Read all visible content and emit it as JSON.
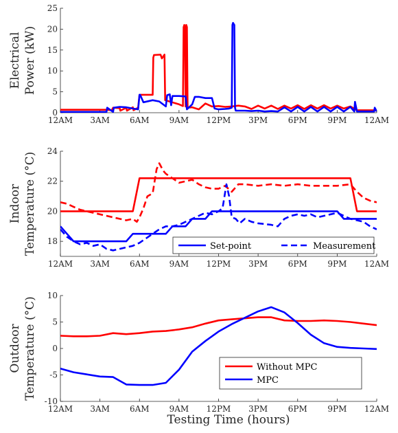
{
  "colors": {
    "without_mpc": "#ff0000",
    "mpc": "#0000ff"
  },
  "x_axis": {
    "label": "Testing Time (hours)",
    "ticks": [
      0,
      3,
      6,
      9,
      12,
      15,
      18,
      21,
      24
    ],
    "tick_labels": [
      "12AM",
      "3AM",
      "6AM",
      "9AM",
      "12PM",
      "3PM",
      "6PM",
      "9PM",
      "12AM"
    ]
  },
  "chart_data": [
    {
      "type": "line",
      "ylabel_lines": [
        "Electrical",
        "Power (kW)"
      ],
      "xlim": [
        0,
        24
      ],
      "ylim": [
        0,
        25
      ],
      "yticks": [
        0,
        5,
        10,
        15,
        20,
        25
      ],
      "series": [
        {
          "name": "Without MPC",
          "color": "#ff0000",
          "dash": "solid",
          "x": [
            0,
            3.5,
            3.9,
            4.0,
            4.5,
            4.55,
            5.0,
            5.05,
            5.5,
            5.55,
            5.9,
            5.95,
            6.0,
            6.05,
            7.0,
            7.05,
            7.1,
            7.6,
            7.7,
            7.9,
            7.95,
            9.0,
            9.3,
            9.35,
            9.4,
            9.45,
            9.5,
            9.55,
            9.6,
            9.65,
            10.0,
            10.5,
            11.0,
            11.5,
            12.0,
            12.5,
            13.0,
            13.5,
            14.0,
            14.5,
            15.0,
            15.5,
            16.0,
            16.5,
            17.0,
            17.5,
            18.0,
            18.5,
            19.0,
            19.5,
            20.0,
            20.5,
            21.0,
            21.5,
            22.0,
            22.5,
            23.0,
            24.0
          ],
          "y": [
            0.7,
            0.7,
            0.6,
            1.2,
            1.1,
            0.5,
            1.2,
            0.5,
            1.3,
            0.6,
            1.2,
            2.8,
            4.3,
            4.3,
            4.3,
            13.2,
            13.8,
            13.9,
            13.0,
            13.9,
            3.0,
            2.0,
            1.6,
            20.5,
            21.0,
            20.0,
            1.5,
            21.0,
            20.5,
            1.2,
            1.3,
            0.8,
            2.2,
            1.5,
            1.6,
            1.4,
            1.5,
            1.7,
            1.5,
            0.9,
            1.7,
            1.0,
            1.7,
            0.9,
            1.7,
            1.0,
            1.8,
            0.9,
            1.8,
            1.0,
            1.8,
            1.0,
            1.7,
            1.0,
            1.5,
            0.6,
            0.6,
            0.6
          ]
        },
        {
          "name": "MPC",
          "color": "#0000ff",
          "dash": "solid",
          "x": [
            0,
            3.0,
            3.5,
            3.55,
            4.0,
            4.05,
            4.5,
            5.0,
            5.5,
            5.9,
            6.0,
            6.05,
            6.3,
            7.0,
            7.5,
            8.0,
            8.1,
            8.3,
            8.4,
            8.5,
            9.0,
            9.5,
            9.6,
            10.0,
            10.2,
            10.5,
            11.0,
            11.5,
            11.7,
            12.0,
            12.5,
            12.8,
            13.0,
            13.05,
            13.1,
            13.2,
            13.25,
            13.3,
            14.0,
            14.5,
            15.0,
            15.5,
            16.0,
            16.5,
            17.0,
            17.5,
            18.0,
            18.5,
            19.0,
            19.5,
            20.0,
            20.5,
            21.0,
            21.5,
            22.0,
            22.3,
            22.35,
            22.5,
            23.0,
            23.8,
            23.85,
            24.0
          ],
          "y": [
            0.2,
            0.2,
            0.2,
            1.2,
            0.2,
            1.2,
            1.4,
            1.3,
            1.0,
            0.8,
            4.3,
            4.3,
            2.5,
            3.0,
            2.7,
            1.5,
            4.2,
            4.4,
            1.8,
            4.0,
            4.0,
            3.9,
            0.8,
            2.0,
            3.8,
            3.8,
            3.5,
            3.5,
            1.0,
            0.8,
            0.9,
            1.0,
            1.2,
            21.0,
            21.5,
            21.0,
            1.2,
            0.5,
            0.5,
            0.4,
            0.5,
            0.3,
            0.4,
            0.3,
            1.3,
            0.3,
            1.4,
            0.3,
            1.4,
            0.3,
            1.4,
            0.3,
            1.4,
            0.3,
            1.4,
            0.3,
            2.6,
            0.3,
            0.3,
            0.3,
            1.2,
            0.3
          ]
        }
      ]
    },
    {
      "type": "line",
      "ylabel_lines": [
        "Indoor",
        "Temperature (°C)"
      ],
      "xlim": [
        0,
        24
      ],
      "ylim": [
        17,
        24
      ],
      "yticks": [
        18,
        20,
        22,
        24
      ],
      "legend": {
        "placement": "bottom-right",
        "entries": [
          {
            "label": "Set-point",
            "dash": "solid"
          },
          {
            "label": "Measurement",
            "dash": "dashed"
          }
        ]
      },
      "series": [
        {
          "name": "Set-point",
          "color": "#ff0000",
          "dash": "solid",
          "x": [
            0,
            5.5,
            6.0,
            22.0,
            22.5,
            24.0
          ],
          "y": [
            20.0,
            20.0,
            22.2,
            22.2,
            20.0,
            20.0
          ]
        },
        {
          "name": "Measurement",
          "color": "#ff0000",
          "dash": "dashed",
          "x": [
            0,
            0.5,
            1.0,
            1.5,
            2.0,
            2.5,
            3.0,
            3.5,
            4.0,
            4.5,
            5.0,
            5.5,
            5.8,
            6.0,
            6.3,
            6.6,
            7.0,
            7.3,
            7.5,
            7.8,
            8.0,
            8.5,
            9.0,
            9.5,
            10.0,
            10.5,
            11.0,
            11.5,
            12.0,
            12.5,
            13.0,
            13.5,
            14.0,
            15.0,
            16.0,
            17.0,
            18.0,
            19.0,
            20.0,
            21.0,
            22.0,
            22.5,
            23.0,
            23.5,
            24.0
          ],
          "y": [
            20.6,
            20.5,
            20.3,
            20.1,
            20.0,
            19.9,
            19.8,
            19.7,
            19.6,
            19.5,
            19.4,
            19.5,
            19.3,
            19.6,
            20.2,
            21.0,
            21.2,
            22.8,
            23.2,
            22.7,
            22.5,
            22.2,
            21.9,
            22.0,
            22.1,
            21.8,
            21.6,
            21.5,
            21.5,
            21.7,
            21.3,
            21.8,
            21.8,
            21.7,
            21.8,
            21.7,
            21.8,
            21.7,
            21.7,
            21.7,
            21.8,
            21.3,
            20.9,
            20.7,
            20.6
          ]
        },
        {
          "name": "Set-point",
          "color": "#0000ff",
          "dash": "solid",
          "x": [
            0,
            0.5,
            1.0,
            5.0,
            5.5,
            6.5,
            7.0,
            8.0,
            8.5,
            9.5,
            10.0,
            11.0,
            11.5,
            21.0,
            21.5,
            24.0
          ],
          "y": [
            19.0,
            18.5,
            18.0,
            18.0,
            18.5,
            18.5,
            18.5,
            18.5,
            19.0,
            19.0,
            19.5,
            19.5,
            20.0,
            20.0,
            19.5,
            19.5
          ]
        },
        {
          "name": "Measurement",
          "color": "#0000ff",
          "dash": "dashed",
          "x": [
            0,
            0.5,
            1.0,
            1.5,
            2.0,
            2.5,
            3.0,
            3.5,
            4.0,
            4.5,
            5.0,
            5.5,
            6.0,
            6.5,
            7.0,
            7.5,
            8.0,
            8.5,
            9.0,
            9.5,
            10.0,
            10.5,
            11.0,
            11.5,
            12.0,
            12.3,
            12.6,
            12.8,
            13.0,
            13.3,
            13.6,
            14.0,
            14.5,
            15.0,
            16.0,
            16.5,
            17.0,
            17.5,
            18.0,
            18.5,
            19.0,
            19.5,
            20.0,
            20.5,
            21.0,
            21.5,
            22.0,
            22.5,
            23.0,
            23.5,
            24.0
          ],
          "y": [
            18.8,
            18.3,
            18.0,
            17.8,
            17.9,
            17.7,
            17.8,
            17.5,
            17.4,
            17.5,
            17.6,
            17.7,
            17.9,
            18.2,
            18.5,
            18.8,
            19.0,
            19.0,
            19.1,
            19.3,
            19.5,
            19.7,
            19.9,
            19.8,
            20.0,
            20.2,
            21.8,
            21.0,
            19.6,
            19.5,
            19.2,
            19.5,
            19.3,
            19.2,
            19.1,
            19.0,
            19.5,
            19.7,
            19.8,
            19.7,
            19.8,
            19.6,
            19.7,
            19.8,
            19.9,
            19.7,
            19.5,
            19.4,
            19.3,
            19.0,
            18.8
          ]
        }
      ]
    },
    {
      "type": "line",
      "ylabel_lines": [
        "Outdoor",
        "Temperature (°C)"
      ],
      "xlim": [
        0,
        24
      ],
      "ylim": [
        -10,
        10
      ],
      "yticks": [
        -10,
        -5,
        0,
        5,
        10
      ],
      "legend": {
        "placement": "bottom-right",
        "entries": [
          {
            "label": "Without MPC",
            "color": "#ff0000"
          },
          {
            "label": "MPC",
            "color": "#0000ff"
          }
        ]
      },
      "series": [
        {
          "name": "Without MPC",
          "color": "#ff0000",
          "dash": "solid",
          "x": [
            0,
            1,
            2,
            3,
            4,
            5,
            6,
            7,
            8,
            9,
            10,
            11,
            12,
            13,
            14,
            15,
            16,
            17,
            18,
            19,
            20,
            21,
            22,
            23,
            24
          ],
          "y": [
            2.4,
            2.3,
            2.3,
            2.4,
            2.9,
            2.7,
            2.9,
            3.2,
            3.3,
            3.6,
            4.0,
            4.7,
            5.3,
            5.5,
            5.7,
            5.9,
            5.9,
            5.3,
            5.2,
            5.2,
            5.3,
            5.2,
            5.0,
            4.7,
            4.4
          ]
        },
        {
          "name": "MPC",
          "color": "#0000ff",
          "dash": "solid",
          "x": [
            0,
            1,
            2,
            3,
            4,
            5,
            6,
            7,
            8,
            9,
            10,
            11,
            12,
            13,
            14,
            15,
            16,
            17,
            18,
            19,
            20,
            21,
            22,
            23,
            24
          ],
          "y": [
            -3.8,
            -4.5,
            -4.9,
            -5.3,
            -5.4,
            -6.8,
            -6.9,
            -6.9,
            -6.5,
            -4.0,
            -0.6,
            1.4,
            3.2,
            4.6,
            5.8,
            7.0,
            7.8,
            6.8,
            4.8,
            2.6,
            1.0,
            0.3,
            0.1,
            0.0,
            -0.1
          ]
        }
      ]
    }
  ]
}
